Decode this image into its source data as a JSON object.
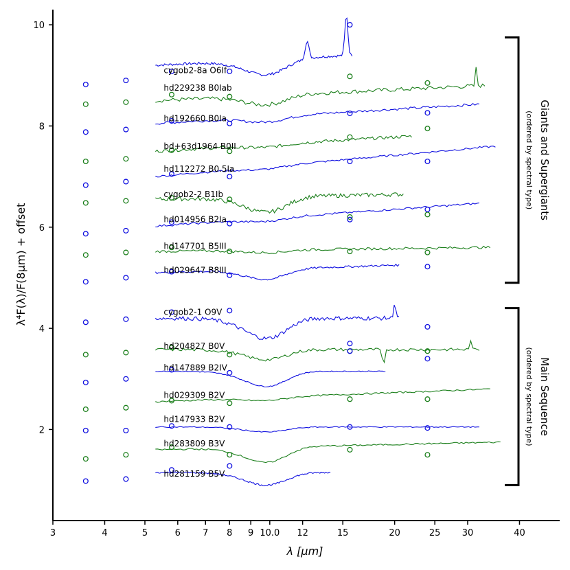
{
  "chart_data": {
    "type": "line",
    "xscale": "log",
    "xlabel": "λ [μm]",
    "ylabel": "λ⁴F(λ)/F(8μm) + offset",
    "xlim": [
      3,
      50
    ],
    "ylim": [
      0.2,
      10.3
    ],
    "xticks": [
      3,
      4,
      5,
      6,
      7,
      8,
      9,
      10,
      12,
      15,
      20,
      25,
      30,
      40
    ],
    "xtick_labels": [
      "3",
      "4",
      "5",
      "6",
      "7",
      "8",
      "9",
      "10.0",
      "12",
      "15",
      "20",
      "25",
      "30",
      "40"
    ],
    "yticks": [
      2,
      4,
      6,
      8,
      10
    ],
    "ytick_labels": [
      "2",
      "4",
      "6",
      "8",
      "10"
    ],
    "colors": {
      "blue": "#1010e0",
      "green": "#1b7f1b"
    },
    "groups": [
      {
        "title": "Giants and Supergiants",
        "subtitle": "(ordered by spectral type)",
        "ymin": 4.9,
        "ymax": 9.75
      },
      {
        "title": "Main Sequence",
        "subtitle": "(ordered by spectral type)",
        "ymin": 0.9,
        "ymax": 4.4
      }
    ],
    "series": [
      {
        "name": "cygob2-8a O6If",
        "color": "blue",
        "label_y": 9.1,
        "x_end": 15.8,
        "offset": 9.2,
        "tilt": 0.2,
        "dip": 0.3,
        "noise": 0.05,
        "spikes": [
          [
            12.3,
            0.35
          ],
          [
            15.3,
            0.8
          ]
        ],
        "phot": [
          [
            3.6,
            8.82
          ],
          [
            4.5,
            8.9
          ],
          [
            5.8,
            9.08
          ],
          [
            8.0,
            9.08
          ],
          [
            15.6,
            10.0
          ]
        ]
      },
      {
        "name": "hd229238 B0Iab",
        "color": "green",
        "label_y": 8.75,
        "x_end": 33.0,
        "offset": 8.5,
        "tilt": 0.3,
        "dip": 0.18,
        "noise": 0.08,
        "spikes": [
          [
            31.5,
            0.4
          ]
        ],
        "phot": [
          [
            3.6,
            8.43
          ],
          [
            4.5,
            8.47
          ],
          [
            5.8,
            8.62
          ],
          [
            8.0,
            8.58
          ],
          [
            15.6,
            8.98
          ],
          [
            24.0,
            8.85
          ]
        ]
      },
      {
        "name": "hd192660 B0Ia",
        "color": "blue",
        "label_y": 8.15,
        "x_end": 32.0,
        "offset": 8.05,
        "tilt": 0.38,
        "dip": 0.1,
        "noise": 0.05,
        "spikes": [],
        "phot": [
          [
            3.6,
            7.88
          ],
          [
            4.5,
            7.93
          ],
          [
            5.8,
            8.1
          ],
          [
            8.0,
            8.05
          ],
          [
            15.6,
            8.25
          ],
          [
            24.0,
            8.26
          ]
        ]
      },
      {
        "name": "bd+63d1964 B0II",
        "color": "green",
        "label_y": 7.6,
        "x_end": 22.0,
        "offset": 7.5,
        "tilt": 0.3,
        "dip": 0.05,
        "noise": 0.06,
        "spikes": [],
        "phot": [
          [
            3.6,
            7.3
          ],
          [
            4.5,
            7.35
          ],
          [
            5.8,
            7.52
          ],
          [
            8.0,
            7.5
          ],
          [
            15.6,
            7.78
          ],
          [
            24.0,
            7.95
          ]
        ]
      },
      {
        "name": "hd112272 B0.5Ia",
        "color": "blue",
        "label_y": 7.15,
        "x_end": 35.0,
        "offset": 7.0,
        "tilt": 0.6,
        "dip": 0.05,
        "noise": 0.04,
        "spikes": [],
        "phot": [
          [
            3.6,
            6.83
          ],
          [
            4.5,
            6.9
          ],
          [
            5.8,
            7.05
          ],
          [
            8.0,
            7.0
          ],
          [
            15.6,
            7.3
          ],
          [
            24.0,
            7.3
          ]
        ]
      },
      {
        "name": "cygob2-2 B1Ib",
        "color": "green",
        "label_y": 6.65,
        "x_end": 21.0,
        "offset": 6.55,
        "tilt": 0.1,
        "dip": 0.3,
        "noise": 0.08,
        "spikes": [],
        "phot": [
          [
            3.6,
            6.48
          ],
          [
            4.5,
            6.52
          ],
          [
            5.8,
            6.58
          ],
          [
            8.0,
            6.55
          ],
          [
            15.6,
            6.2
          ],
          [
            24.0,
            6.25
          ]
        ]
      },
      {
        "name": "hd014956 B2Ia",
        "color": "blue",
        "label_y": 6.15,
        "x_end": 32.0,
        "offset": 6.02,
        "tilt": 0.45,
        "dip": 0.06,
        "noise": 0.04,
        "spikes": [],
        "phot": [
          [
            3.6,
            5.87
          ],
          [
            4.5,
            5.93
          ],
          [
            5.8,
            6.1
          ],
          [
            8.0,
            6.07
          ],
          [
            15.6,
            6.15
          ],
          [
            24.0,
            6.35
          ]
        ]
      },
      {
        "name": "hd147701 B5III",
        "color": "green",
        "label_y": 5.62,
        "x_end": 34.0,
        "offset": 5.52,
        "tilt": 0.08,
        "dip": 0.05,
        "noise": 0.05,
        "spikes": [],
        "phot": [
          [
            3.6,
            5.45
          ],
          [
            4.5,
            5.5
          ],
          [
            5.8,
            5.6
          ],
          [
            8.0,
            5.52
          ],
          [
            15.6,
            5.52
          ],
          [
            24.0,
            5.5
          ]
        ]
      },
      {
        "name": "hd029647 B8III",
        "color": "blue",
        "label_y": 5.15,
        "x_end": 20.5,
        "offset": 5.1,
        "tilt": 0.15,
        "dip": 0.2,
        "noise": 0.04,
        "spikes": [],
        "phot": [
          [
            3.6,
            4.92
          ],
          [
            4.5,
            5.0
          ],
          [
            5.8,
            5.12
          ],
          [
            8.0,
            5.05
          ],
          [
            24.0,
            5.22
          ]
        ]
      },
      {
        "name": "cygob2-1 O9V",
        "color": "blue",
        "label_y": 4.32,
        "x_end": 20.5,
        "offset": 4.2,
        "tilt": 0.0,
        "dip": 0.4,
        "noise": 0.08,
        "spikes": [
          [
            20.0,
            0.3
          ]
        ],
        "phot": [
          [
            3.6,
            4.12
          ],
          [
            4.5,
            4.18
          ],
          [
            5.8,
            4.32
          ],
          [
            8.0,
            4.35
          ],
          [
            15.6,
            3.7
          ],
          [
            24.0,
            4.03
          ]
        ]
      },
      {
        "name": "hd204827 B0V",
        "color": "green",
        "label_y": 3.65,
        "x_end": 32.0,
        "offset": 3.58,
        "tilt": 0.0,
        "dip": 0.2,
        "noise": 0.06,
        "spikes": [
          [
            18.8,
            -0.35
          ],
          [
            30.5,
            0.2
          ]
        ],
        "phot": [
          [
            3.6,
            3.48
          ],
          [
            4.5,
            3.52
          ],
          [
            5.8,
            3.62
          ],
          [
            8.0,
            3.48
          ],
          [
            15.6,
            3.55
          ],
          [
            24.0,
            3.55
          ]
        ]
      },
      {
        "name": "hd147889 B2IV",
        "color": "blue",
        "label_y": 3.22,
        "x_end": 19.0,
        "offset": 3.15,
        "tilt": 0.0,
        "dip": 0.3,
        "noise": 0.02,
        "spikes": [],
        "phot": [
          [
            3.6,
            2.93
          ],
          [
            4.5,
            3.0
          ],
          [
            5.8,
            3.18
          ],
          [
            8.0,
            3.12
          ],
          [
            15.6,
            3.55
          ],
          [
            24.0,
            3.4
          ]
        ]
      },
      {
        "name": "hd029309 B2V",
        "color": "green",
        "label_y": 2.68,
        "x_end": 34.0,
        "offset": 2.55,
        "tilt": 0.25,
        "dip": 0.06,
        "noise": 0.03,
        "spikes": [],
        "phot": [
          [
            3.6,
            2.4
          ],
          [
            4.5,
            2.43
          ],
          [
            5.8,
            2.57
          ],
          [
            8.0,
            2.52
          ],
          [
            15.6,
            2.6
          ],
          [
            24.0,
            2.6
          ]
        ]
      },
      {
        "name": "hd147933 B2V",
        "color": "blue",
        "label_y": 2.2,
        "x_end": 32.0,
        "offset": 2.05,
        "tilt": 0.0,
        "dip": 0.1,
        "noise": 0.02,
        "spikes": [],
        "phot": [
          [
            3.6,
            1.98
          ],
          [
            4.5,
            1.98
          ],
          [
            5.8,
            2.07
          ],
          [
            8.0,
            2.05
          ],
          [
            15.6,
            2.05
          ],
          [
            24.0,
            2.03
          ]
        ]
      },
      {
        "name": "hd283809 B3V",
        "color": "green",
        "label_y": 1.72,
        "x_end": 36.0,
        "offset": 1.6,
        "tilt": 0.15,
        "dip": 0.3,
        "noise": 0.03,
        "spikes": [],
        "phot": [
          [
            3.6,
            1.42
          ],
          [
            4.5,
            1.5
          ],
          [
            5.8,
            1.65
          ],
          [
            8.0,
            1.5
          ],
          [
            15.6,
            1.6
          ],
          [
            24.0,
            1.5
          ]
        ]
      },
      {
        "name": "hd281159 B5V",
        "color": "blue",
        "label_y": 1.12,
        "x_end": 14.0,
        "offset": 1.15,
        "tilt": 0.0,
        "dip": 0.25,
        "noise": 0.03,
        "spikes": [],
        "phot": [
          [
            3.6,
            0.98
          ],
          [
            4.5,
            1.02
          ],
          [
            5.8,
            1.2
          ],
          [
            8.0,
            1.28
          ]
        ]
      }
    ]
  }
}
